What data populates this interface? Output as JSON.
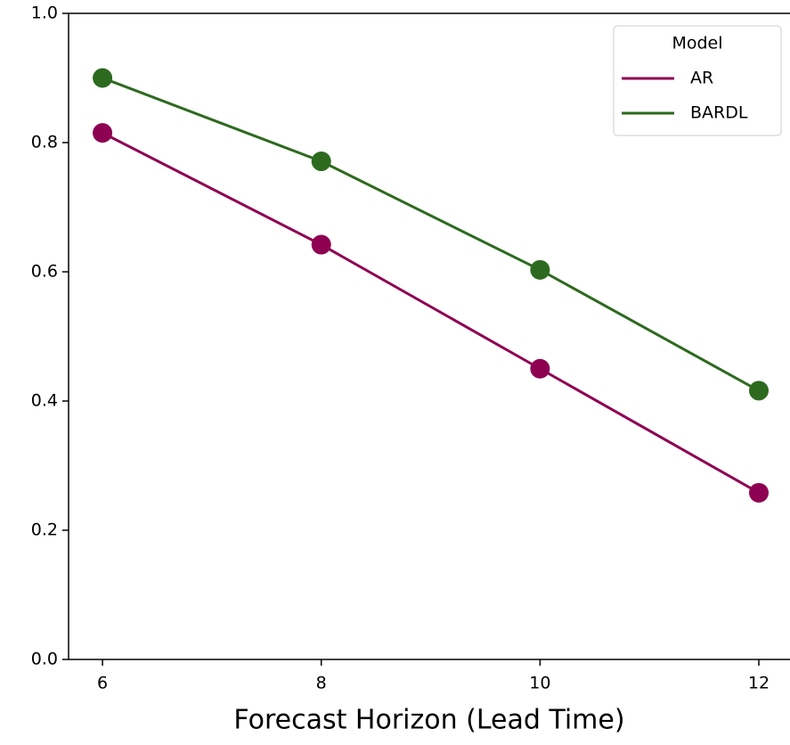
{
  "chart_data": {
    "type": "line",
    "x": [
      6,
      8,
      10,
      12
    ],
    "series": [
      {
        "name": "AR",
        "color": "#8e0152",
        "values": [
          0.815,
          0.642,
          0.45,
          0.258
        ]
      },
      {
        "name": "BARDL",
        "color": "#2d6a1f",
        "values": [
          0.9,
          0.771,
          0.603,
          0.416
        ]
      }
    ],
    "x_label": "Forecast Horizon (Lead Time)",
    "xlim": [
      5.69,
      12.285
    ],
    "xticks": [
      6,
      8,
      10,
      12
    ],
    "ylim": [
      0,
      1
    ],
    "yticks": [
      {
        "value": 0,
        "label": "0.0"
      },
      0.2,
      0.4,
      0.6,
      0.8,
      {
        "value": 1,
        "label": "1.0"
      }
    ],
    "legend_title": "Model",
    "legend_position": "upper right",
    "grid": false
  }
}
